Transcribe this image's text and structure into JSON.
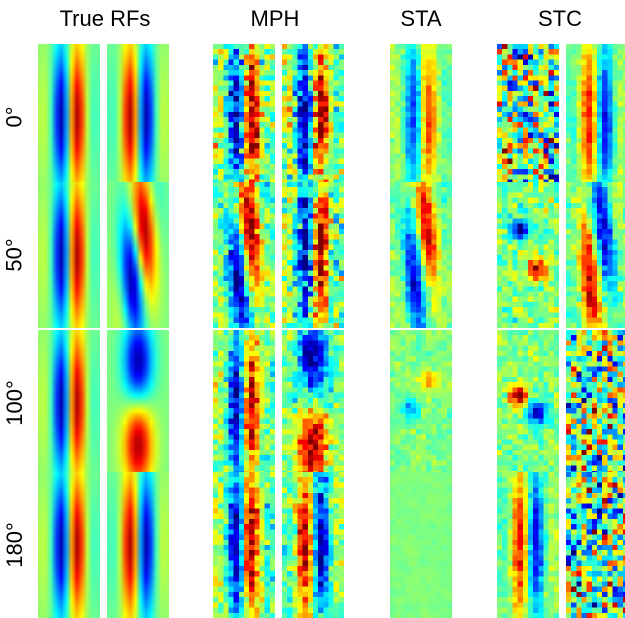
{
  "columns": [
    {
      "key": "true",
      "label": "True RFs"
    },
    {
      "key": "mph",
      "label": "MPH"
    },
    {
      "key": "sta",
      "label": "STA"
    },
    {
      "key": "stc",
      "label": "STC"
    }
  ],
  "rows": [
    {
      "label": "0°",
      "angle": 0
    },
    {
      "label": "50°",
      "angle": 50
    },
    {
      "label": "100°",
      "angle": 100
    },
    {
      "label": "180°",
      "angle": 180
    }
  ],
  "colormap": "jet"
}
